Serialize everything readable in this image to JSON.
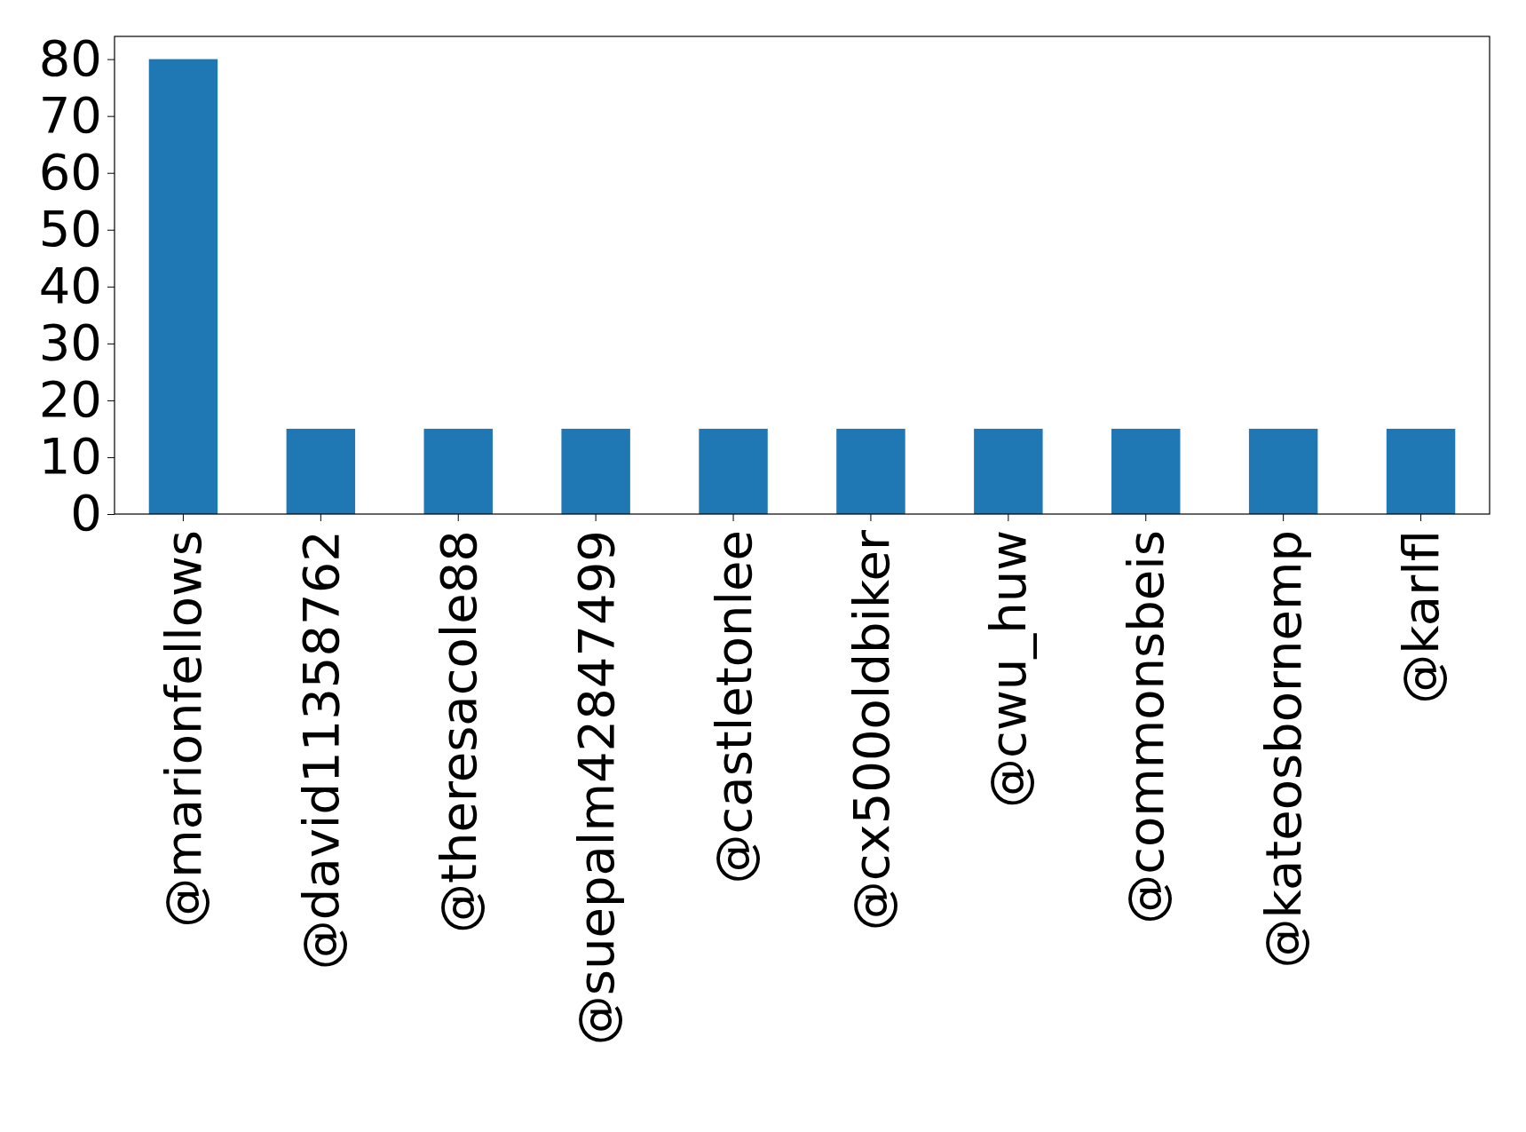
{
  "chart_data": {
    "type": "bar",
    "categories": [
      "@marionfellows",
      "@david11358762",
      "@theresacole88",
      "@suepalm42847499",
      "@castletonlee",
      "@cx500oldbiker",
      "@cwu_huw",
      "@commonsbeis",
      "@kateosbornemp",
      "@karlfl"
    ],
    "values": [
      80,
      15,
      15,
      15,
      15,
      15,
      15,
      15,
      15,
      15
    ],
    "color": "#1f77b4",
    "ylim": [
      0,
      84
    ],
    "yticks": [
      0,
      10,
      20,
      30,
      40,
      50,
      60,
      70,
      80
    ],
    "grid": false
  }
}
